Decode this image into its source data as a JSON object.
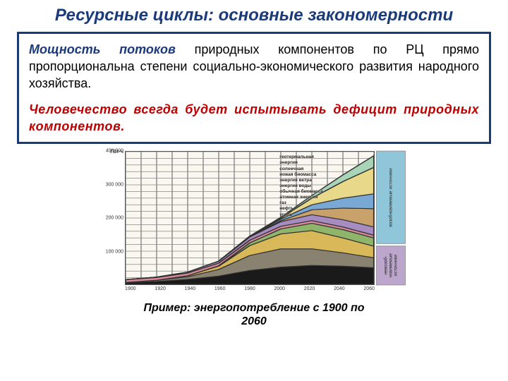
{
  "title": "Ресурсные циклы: основные закономерности",
  "paragraph1": {
    "lead": "Мощность потоков",
    "rest": " природных компонентов по РЦ прямо пропорциональна степени социально-экономического развития народного хозяйства."
  },
  "paragraph2": "Человечество всегда будет испытывать дефицит природных компонентов.",
  "caption_line1": "Пример: энергопотребление с 1900 по",
  "caption_line2": "2060",
  "chart": {
    "type": "stacked-area",
    "y_unit": "ГВт·ч",
    "ylim": [
      0,
      400000
    ],
    "yticks": [
      0,
      100000,
      200000,
      300000,
      400000
    ],
    "ytick_labels": [
      "",
      "100 000",
      "200 000",
      "300 000",
      "400 000"
    ],
    "xlim": [
      1900,
      2060
    ],
    "xticks": [
      1900,
      1920,
      1940,
      1960,
      1980,
      2000,
      2020,
      2040,
      2060
    ],
    "background_color": "#faf7f0",
    "grid_color": "#888888",
    "series": [
      {
        "name": "уголь",
        "color": "#1a1a1a",
        "values_by_year": {
          "1900": 5000,
          "1920": 9000,
          "1940": 15000,
          "1960": 25000,
          "1980": 42000,
          "2000": 52000,
          "2020": 57000,
          "2040": 55000,
          "2060": 50000
        }
      },
      {
        "name": "нефть",
        "color": "#8a8270",
        "values_by_year": {
          "1900": 1000,
          "1920": 3000,
          "1940": 8000,
          "1960": 20000,
          "1980": 45000,
          "2000": 55000,
          "2020": 50000,
          "2040": 40000,
          "2060": 30000
        }
      },
      {
        "name": "газ",
        "color": "#d9b85a",
        "values_by_year": {
          "1900": 0,
          "1920": 500,
          "1940": 3000,
          "1960": 10000,
          "1980": 30000,
          "2000": 45000,
          "2020": 55000,
          "2040": 45000,
          "2060": 35000
        }
      },
      {
        "name": "атомная энергия",
        "color": "#8fb56b",
        "values_by_year": {
          "1900": 0,
          "1920": 0,
          "1940": 0,
          "1960": 1000,
          "1980": 8000,
          "2000": 15000,
          "2020": 22000,
          "2040": 25000,
          "2060": 25000
        }
      },
      {
        "name": "обычная биомасса",
        "color": "#d98a9a",
        "values_by_year": {
          "1900": 8000,
          "1920": 8000,
          "1940": 8000,
          "1960": 8000,
          "1980": 8000,
          "2000": 8000,
          "2020": 8000,
          "2040": 8000,
          "2060": 8000
        }
      },
      {
        "name": "энергия воды",
        "color": "#a68cc0",
        "values_by_year": {
          "1900": 500,
          "1920": 1500,
          "1940": 3000,
          "1960": 6000,
          "1980": 10000,
          "2000": 14000,
          "2020": 18000,
          "2040": 22000,
          "2060": 25000
        }
      },
      {
        "name": "энергия ветра",
        "color": "#c9a26b",
        "values_by_year": {
          "1900": 0,
          "1920": 0,
          "1940": 0,
          "1960": 0,
          "1980": 500,
          "2000": 3000,
          "2020": 15000,
          "2040": 35000,
          "2060": 55000
        }
      },
      {
        "name": "новая биомасса",
        "color": "#7aa8d4",
        "values_by_year": {
          "1900": 0,
          "1920": 0,
          "1940": 0,
          "1960": 0,
          "1980": 1000,
          "2000": 5000,
          "2020": 15000,
          "2040": 30000,
          "2060": 45000
        }
      },
      {
        "name": "солнечная",
        "color": "#e8d88a",
        "values_by_year": {
          "1900": 0,
          "1920": 0,
          "1940": 0,
          "1960": 0,
          "1980": 500,
          "2000": 3000,
          "2020": 20000,
          "2040": 50000,
          "2060": 80000
        }
      },
      {
        "name": "геотермальная энергия",
        "color": "#a8d4b8",
        "values_by_year": {
          "1900": 0,
          "1920": 0,
          "1940": 0,
          "1960": 0,
          "1980": 500,
          "2000": 2000,
          "2020": 8000,
          "2040": 20000,
          "2060": 35000
        }
      }
    ],
    "sidebar": {
      "renewable": "возобновляемые источники",
      "nonrenewable": "невозоб-новляемые источники",
      "renewable_color": "#8fc6d9",
      "nonrenewable_color": "#bda6cc"
    },
    "legend_labels": [
      "геотермальная",
      "энергия",
      "",
      "солнечная",
      "",
      "новая биомасса",
      "энергия ветра",
      "энергия воды",
      "обычная биомасса",
      "атомная энергия",
      "газ",
      "нефть",
      "уголь"
    ]
  }
}
